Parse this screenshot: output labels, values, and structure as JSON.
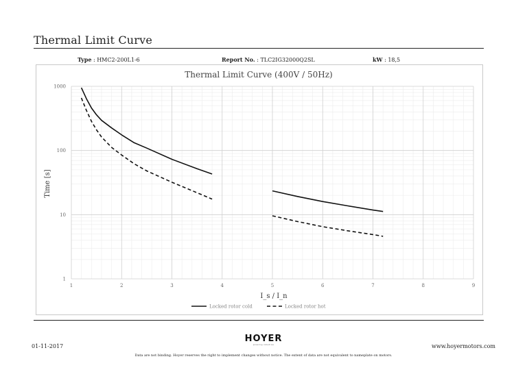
{
  "page_title": "Thermal Limit Curve",
  "meta": {
    "type_label": "Type",
    "type_value": ": HMC2-200L1-6",
    "report_label": "Report No.",
    "report_value": ": TLC2IG32000Q2SL",
    "kw_label": "kW",
    "kw_value": ": 18,5"
  },
  "chart_data": {
    "type": "line",
    "title": "Thermal Limit Curve (400V / 50Hz)",
    "xlabel": "I_s / I_n",
    "ylabel": "Time [s]",
    "xlim": [
      1,
      9
    ],
    "ylim": [
      1,
      1000
    ],
    "y_scale": "log",
    "x_ticks": [
      "1",
      "2",
      "3",
      "4",
      "5",
      "6",
      "7",
      "8",
      "9"
    ],
    "y_ticks": [
      "1",
      "10",
      "100",
      "1000"
    ],
    "grid": true,
    "legend_position": "bottom",
    "series": [
      {
        "name": "Locked rotor cold",
        "style": "solid",
        "segments": [
          {
            "x": [
              1.2,
              1.3,
              1.4,
              1.5,
              1.6,
              1.8,
              2.0,
              2.25,
              2.5,
              3.0,
              3.5,
              3.8
            ],
            "y": [
              950,
              640,
              460,
              360,
              295,
              225,
              175,
              132,
              109,
              73,
              52,
              43
            ]
          },
          {
            "x": [
              5.0,
              5.5,
              6.0,
              6.5,
              7.0,
              7.2
            ],
            "y": [
              23.5,
              19.2,
              16.0,
              13.7,
              11.8,
              11.2
            ]
          }
        ]
      },
      {
        "name": "Locked rotor hot",
        "style": "dashed",
        "segments": [
          {
            "x": [
              1.2,
              1.3,
              1.4,
              1.5,
              1.6,
              1.8,
              2.0,
              2.25,
              2.5,
              3.0,
              3.5,
              3.8
            ],
            "y": [
              660,
              420,
              285,
              210,
              162,
              112,
              85,
              62,
              48,
              32,
              22,
              17.5
            ]
          },
          {
            "x": [
              5.0,
              5.5,
              6.0,
              6.5,
              7.0,
              7.2
            ],
            "y": [
              9.6,
              7.8,
              6.5,
              5.6,
              4.9,
              4.6
            ]
          }
        ]
      }
    ]
  },
  "footer": {
    "date": "01-11-2017",
    "website": "www.hoyermotors.com",
    "logo_text": "HOYER",
    "logo_tagline": "powering industries",
    "disclaimer": "Data are not binding. Hoyer reserves the right to implement changes without notice. The extent of data are not equivalent to nameplate on motors."
  }
}
